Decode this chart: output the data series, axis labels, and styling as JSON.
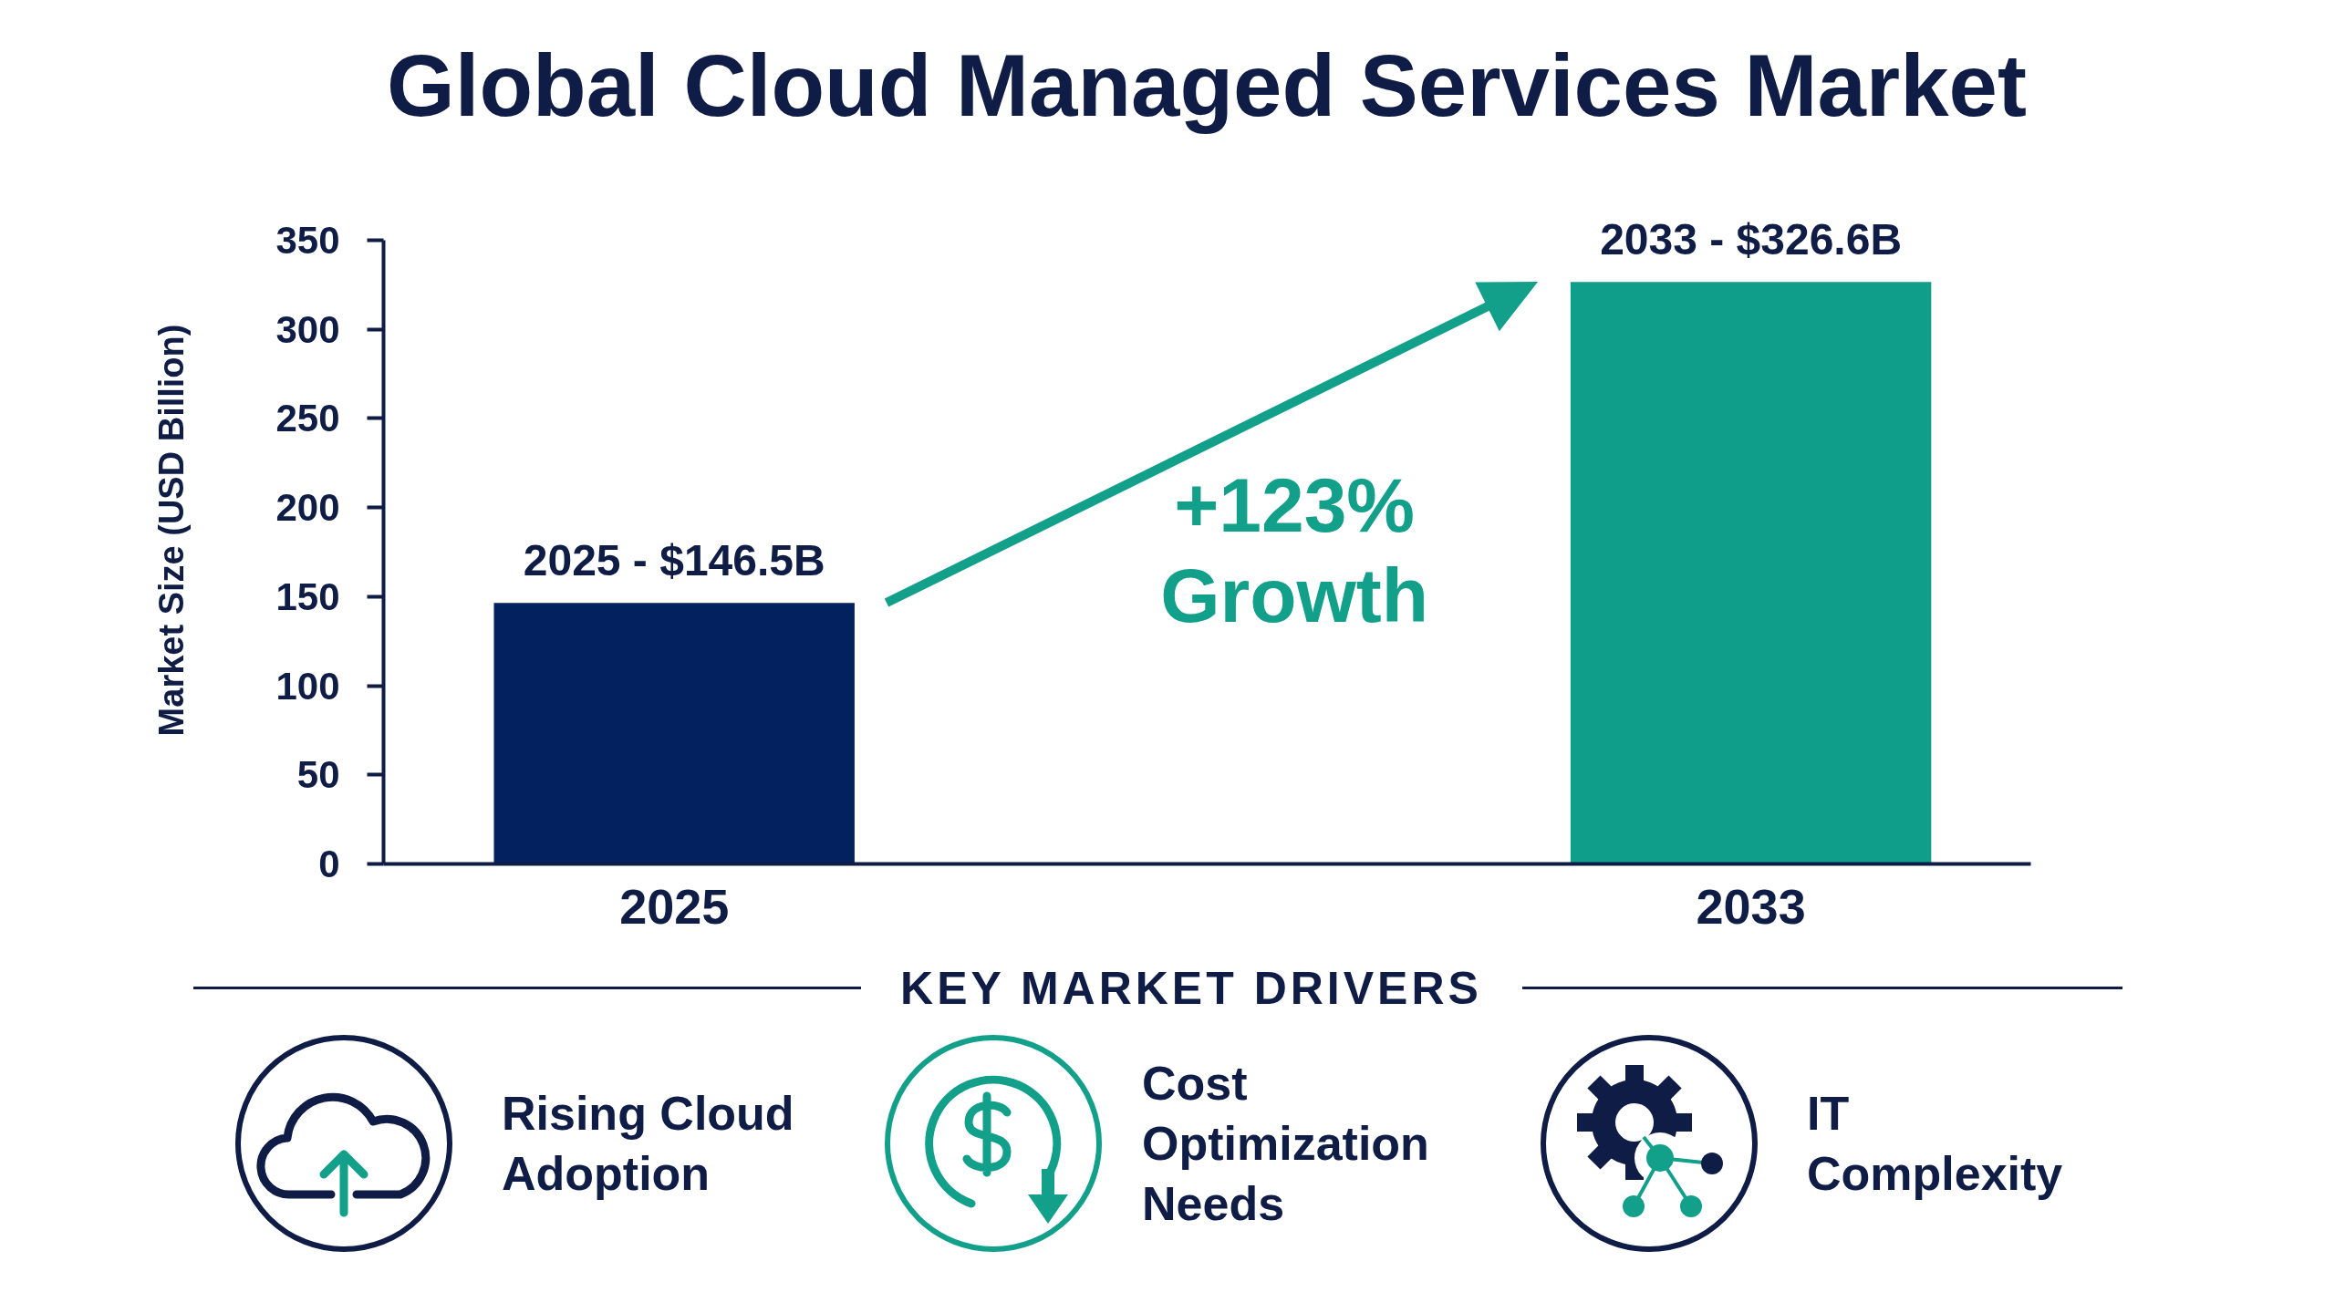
{
  "chart_data": {
    "type": "bar",
    "title": "Global Cloud Managed Services Market",
    "categories": [
      "2025",
      "2033"
    ],
    "values": [
      146.5,
      326.6
    ],
    "colors": [
      "#03215f",
      "#0e9e8a"
    ],
    "ylabel": "Market Size (USD Billion)",
    "ylim": [
      0,
      350
    ],
    "yticks": [
      0,
      50,
      100,
      150,
      200,
      250,
      300,
      350
    ],
    "grid": false,
    "annotations": [
      {
        "text": "2025 - $146.5B",
        "x": "2025",
        "y": 146.5
      },
      {
        "text": "2033 - $326.6B",
        "x": "2033",
        "y": 326.6
      },
      "+123%\nGrowth",
      "KEY MARKET DRIVERS",
      "Rising Cloud\nAdoption",
      "Cost\nOptimization\nNeeds",
      "IT\nComplexity"
    ]
  }
}
